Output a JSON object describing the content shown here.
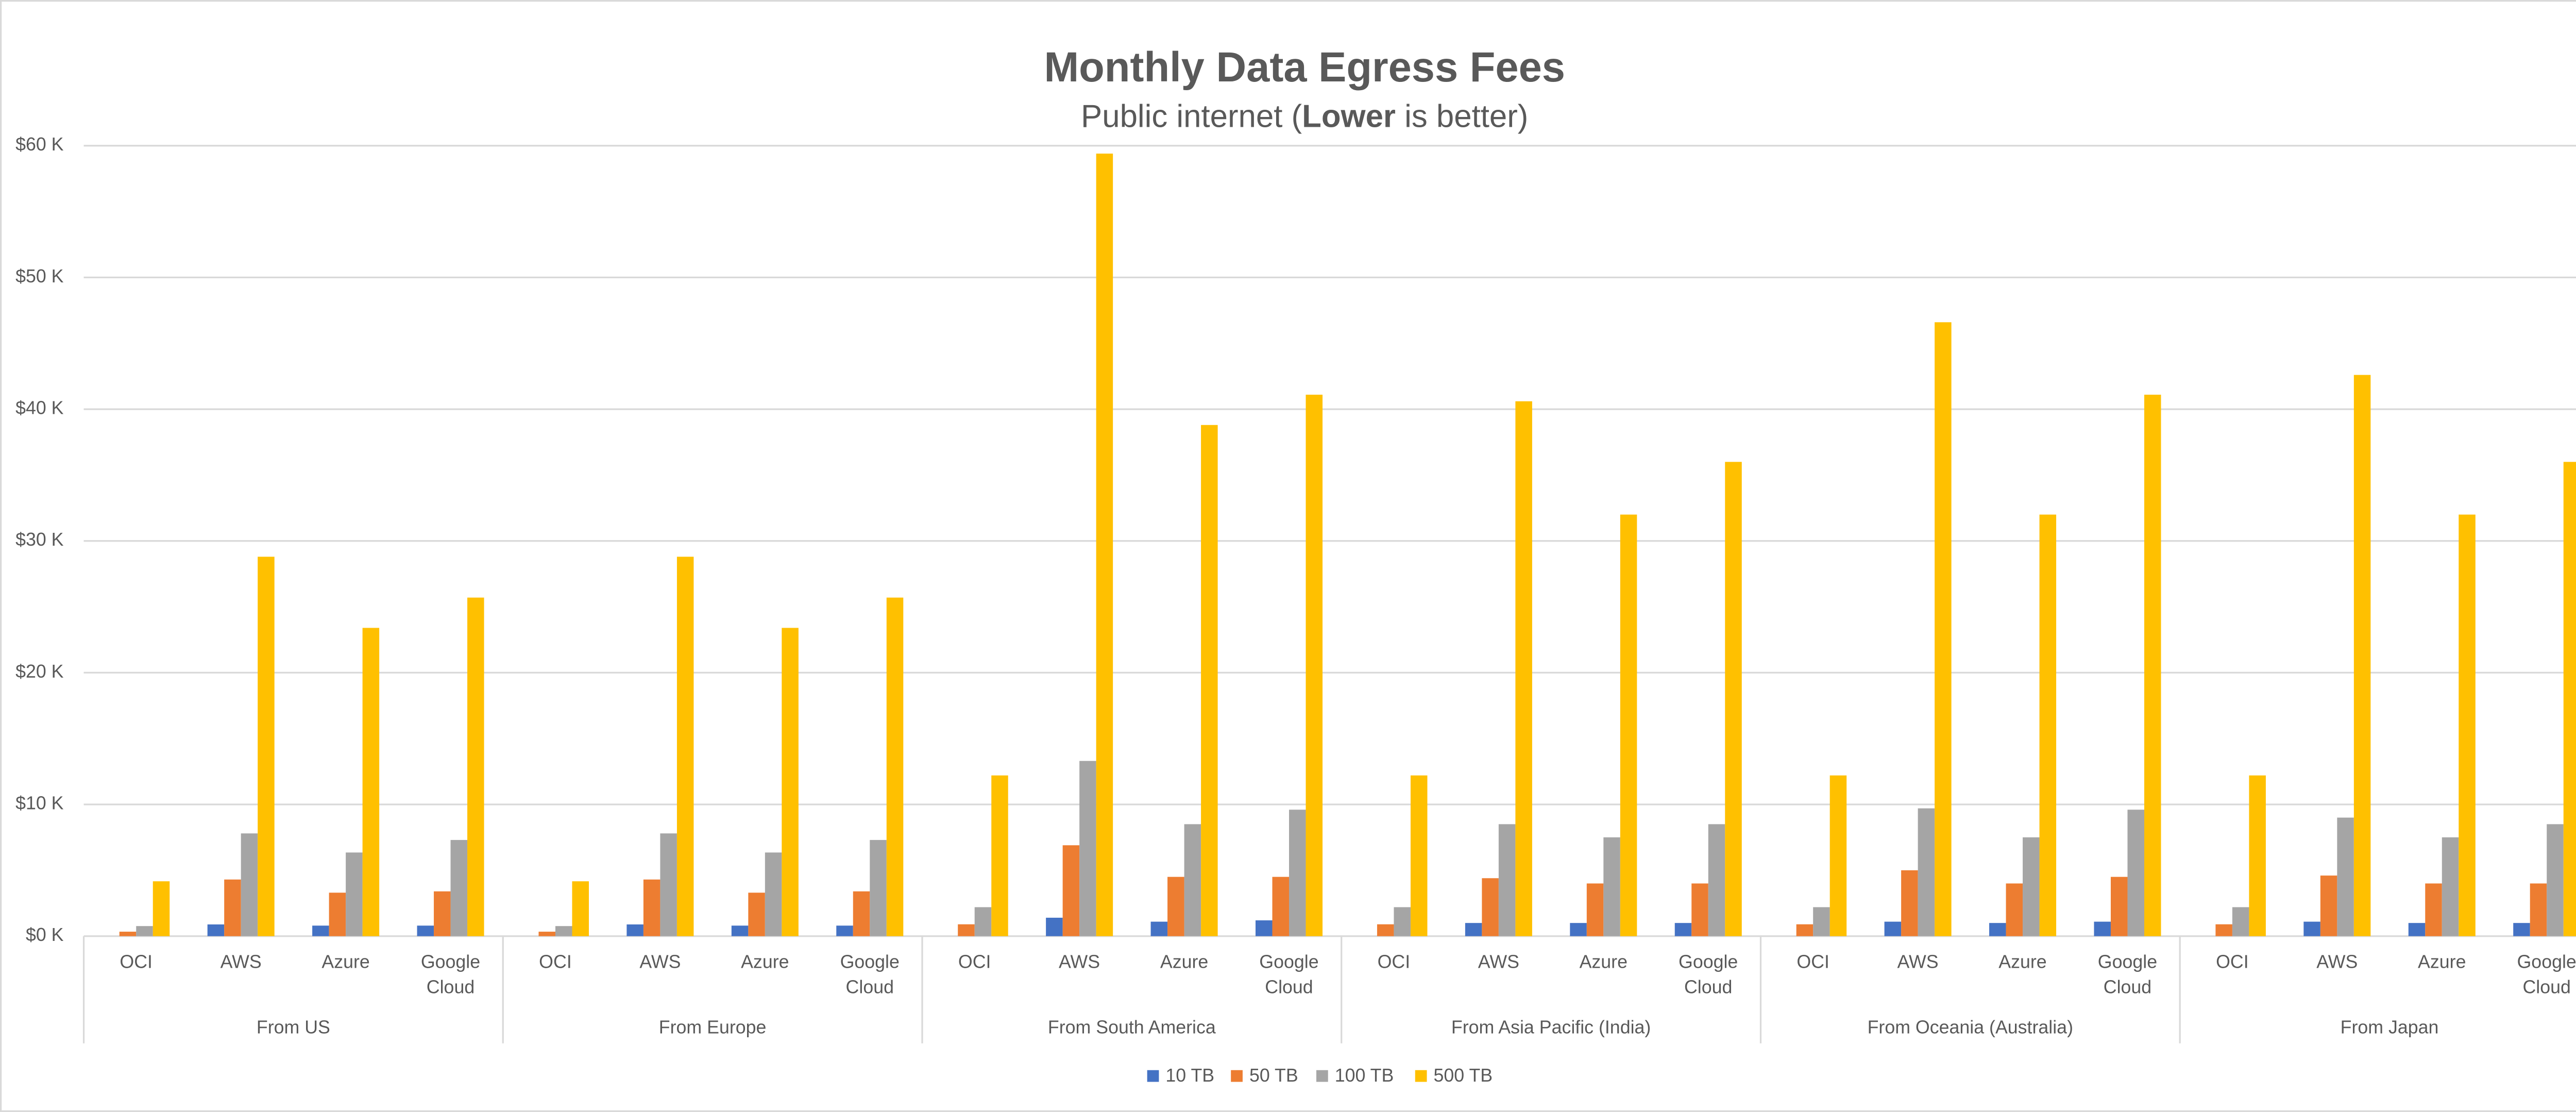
{
  "chart_data": {
    "type": "bar",
    "title": "Monthly Data Egress Fees",
    "subtitle": [
      "Public internet (",
      "Lower",
      " is better)"
    ],
    "categories": [
      "OCI",
      "AWS",
      "Azure",
      "Google Cloud",
      "OCI",
      "AWS",
      "Azure",
      "Google Cloud",
      "OCI",
      "AWS",
      "Azure",
      "Google Cloud",
      "OCI",
      "AWS",
      "Azure",
      "Google Cloud",
      "OCI",
      "AWS",
      "Azure",
      "Google Cloud",
      "OCI",
      "AWS",
      "Azure",
      "Google Cloud"
    ],
    "groups": [
      "From US",
      "From Europe",
      "From South America",
      "From Asia Pacific (India)",
      "From Oceania (Australia)",
      "From Japan"
    ],
    "series": [
      {
        "name": "10 TB",
        "color": "#4472c4",
        "values": [
          0,
          890,
          800,
          800,
          0,
          890,
          800,
          800,
          0,
          1400,
          1100,
          1200,
          0,
          1000,
          1000,
          1000,
          0,
          1100,
          1000,
          1100,
          0,
          1100,
          1000,
          1000
        ]
      },
      {
        "name": "50 TB",
        "color": "#ed7d31",
        "values": [
          340,
          4300,
          3300,
          3400,
          340,
          4300,
          3300,
          3400,
          900,
          6900,
          4500,
          4500,
          900,
          4400,
          4000,
          4000,
          900,
          5000,
          4000,
          4500,
          900,
          4600,
          4000,
          4000
        ]
      },
      {
        "name": "100 TB",
        "color": "#a5a5a5",
        "values": [
          765,
          7800,
          6350,
          7300,
          765,
          7800,
          6350,
          7300,
          2200,
          13300,
          8500,
          9600,
          2200,
          8500,
          7500,
          8500,
          2200,
          9700,
          7500,
          9600,
          2200,
          9000,
          7500,
          8500
        ]
      },
      {
        "name": "500 TB",
        "color": "#ffc000",
        "values": [
          4165,
          28800,
          23400,
          25700,
          4165,
          28800,
          23400,
          25700,
          12200,
          59400,
          38800,
          41100,
          12200,
          40600,
          32000,
          36000,
          12200,
          46600,
          32000,
          41100,
          12200,
          42600,
          32000,
          36000
        ]
      }
    ],
    "ylim": [
      0,
      60000
    ],
    "yticks": [
      {
        "value": 0,
        "label": "$0 K"
      },
      {
        "value": 10000,
        "label": "$10 K"
      },
      {
        "value": 20000,
        "label": "$20 K"
      },
      {
        "value": 30000,
        "label": "$30 K"
      },
      {
        "value": 40000,
        "label": "$40 K"
      },
      {
        "value": 50000,
        "label": "$50 K"
      },
      {
        "value": 60000,
        "label": "$60 K"
      }
    ],
    "grid": true,
    "legend": "bottom"
  }
}
